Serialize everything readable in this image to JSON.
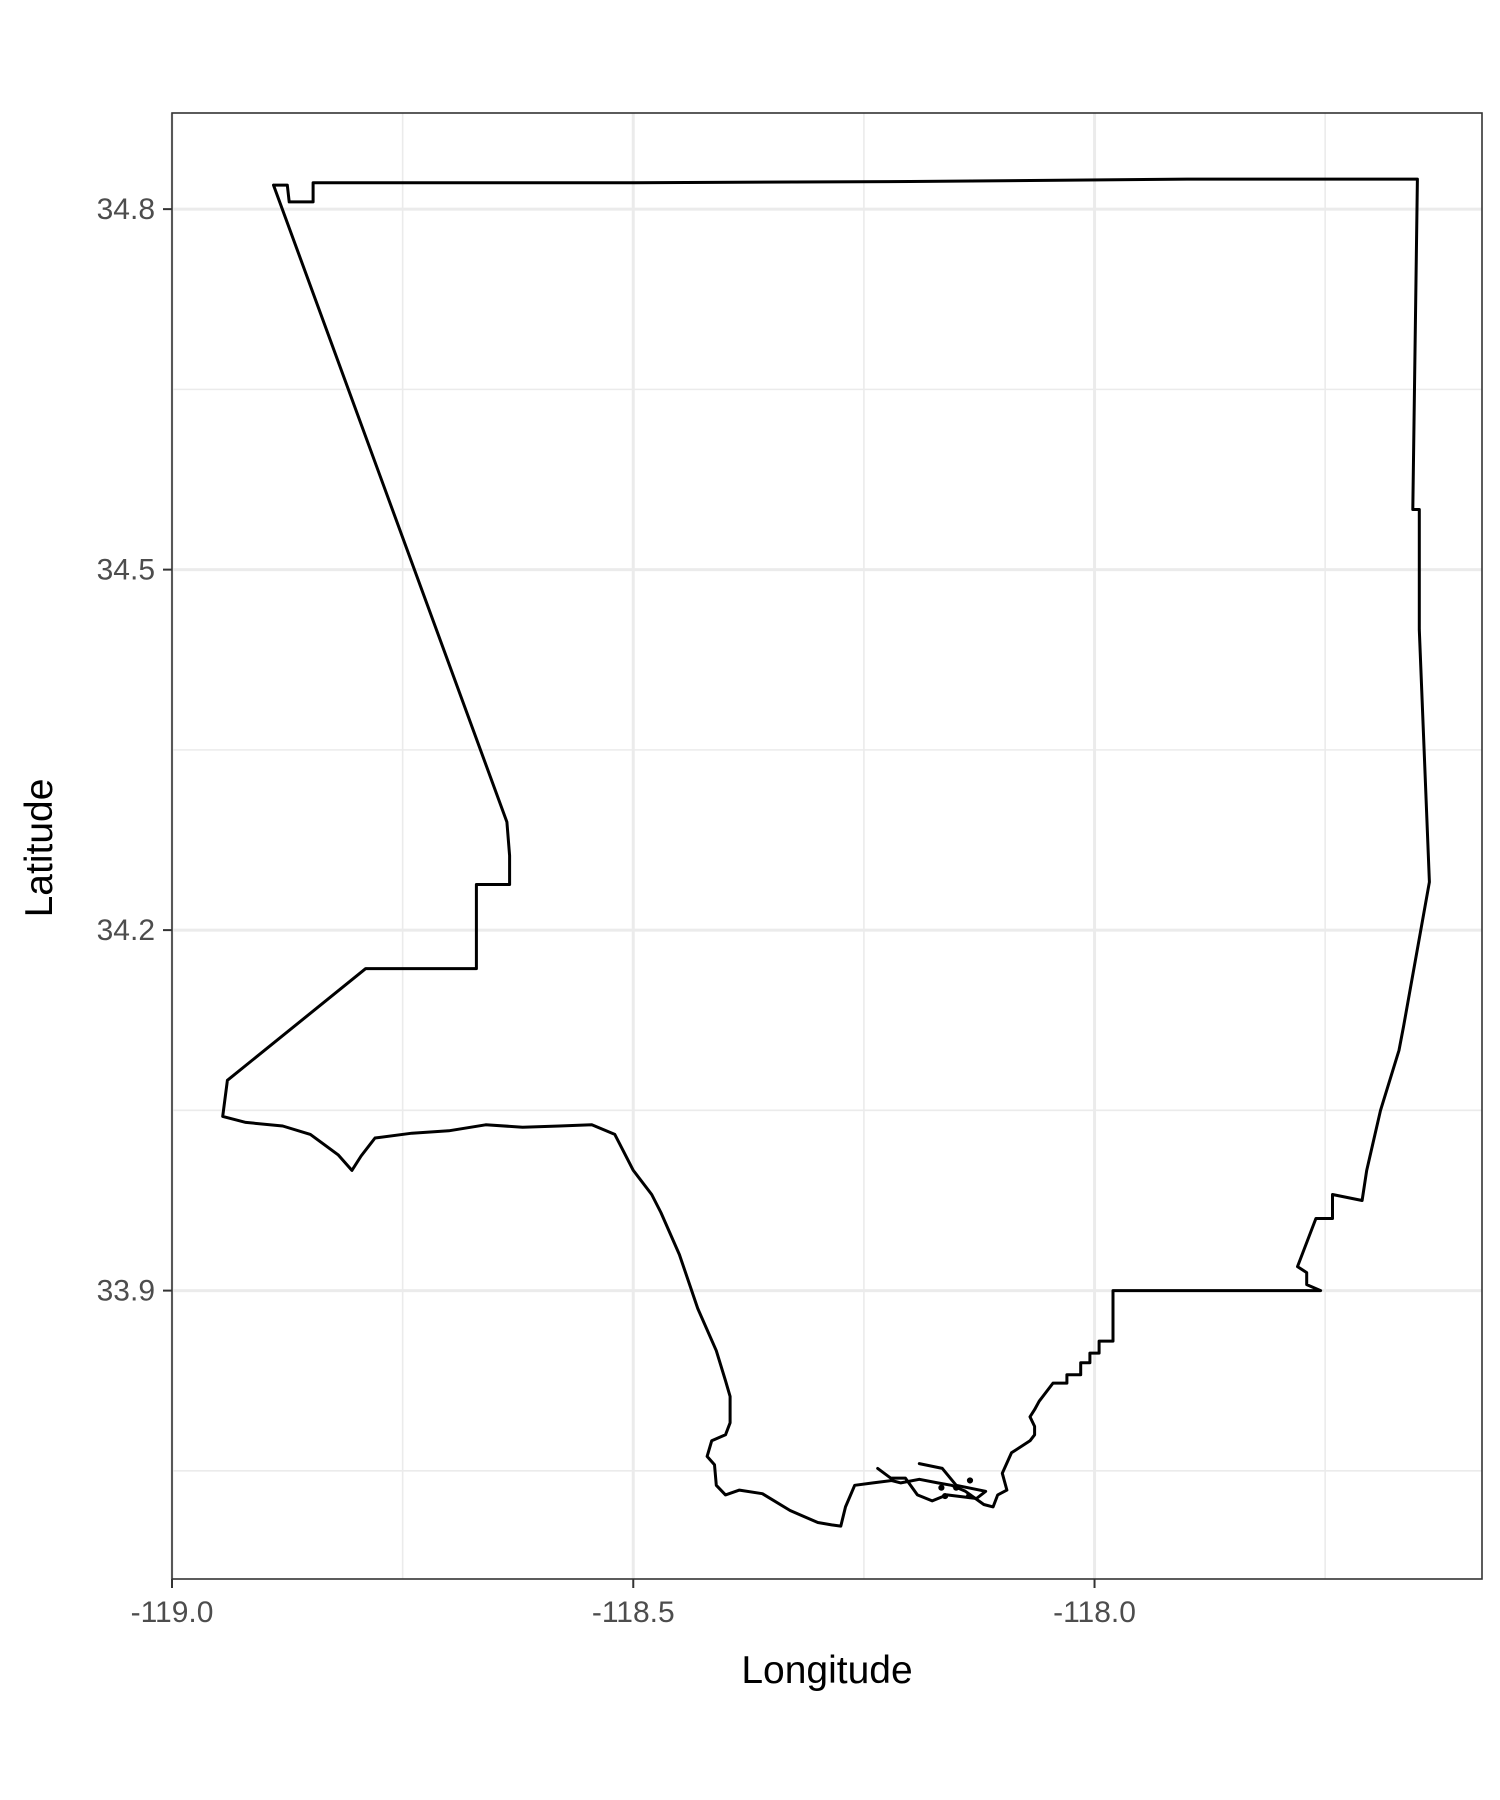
{
  "chart_data": {
    "type": "map",
    "title": "",
    "xlabel": "Longitude",
    "ylabel": "Latitude",
    "xlim": [
      -119.0,
      -117.58
    ],
    "ylim": [
      33.66,
      34.88
    ],
    "x_ticks": [
      {
        "value": -119.0,
        "label": "-119.0"
      },
      {
        "value": -118.5,
        "label": "-118.5"
      },
      {
        "value": -118.0,
        "label": "-118.0"
      }
    ],
    "y_ticks": [
      {
        "value": 33.9,
        "label": "33.9"
      },
      {
        "value": 34.2,
        "label": "34.2"
      },
      {
        "value": 34.5,
        "label": "34.5"
      },
      {
        "value": 34.8,
        "label": "34.8"
      }
    ],
    "x_minor": [
      -118.75,
      -118.25,
      -117.75
    ],
    "y_minor": [
      33.75,
      34.05,
      34.35,
      34.65
    ],
    "grid": true,
    "theme": "bw",
    "boundary": {
      "name": "county-outline",
      "coords": [
        [
          -118.89,
          34.82
        ],
        [
          -118.875,
          34.82
        ],
        [
          -118.873,
          34.806
        ],
        [
          -118.847,
          34.806
        ],
        [
          -118.847,
          34.822
        ],
        [
          -118.5,
          34.822
        ],
        [
          -118.2,
          34.823
        ],
        [
          -117.9,
          34.825
        ],
        [
          -117.65,
          34.825
        ],
        [
          -117.655,
          34.55
        ],
        [
          -117.648,
          34.55
        ],
        [
          -117.648,
          34.45
        ],
        [
          -117.637,
          34.24
        ],
        [
          -117.665,
          34.12
        ],
        [
          -117.67,
          34.1
        ],
        [
          -117.69,
          34.05
        ],
        [
          -117.705,
          34.0
        ],
        [
          -117.71,
          33.975
        ],
        [
          -117.742,
          33.98
        ],
        [
          -117.742,
          33.96
        ],
        [
          -117.76,
          33.96
        ],
        [
          -117.78,
          33.92
        ],
        [
          -117.77,
          33.915
        ],
        [
          -117.77,
          33.905
        ],
        [
          -117.755,
          33.9
        ],
        [
          -117.98,
          33.9
        ],
        [
          -117.98,
          33.858
        ],
        [
          -117.995,
          33.858
        ],
        [
          -117.995,
          33.848
        ],
        [
          -118.005,
          33.848
        ],
        [
          -118.005,
          33.84
        ],
        [
          -118.015,
          33.84
        ],
        [
          -118.015,
          33.83
        ],
        [
          -118.03,
          33.83
        ],
        [
          -118.03,
          33.823
        ],
        [
          -118.045,
          33.823
        ],
        [
          -118.06,
          33.808
        ],
        [
          -118.065,
          33.801
        ],
        [
          -118.07,
          33.795
        ],
        [
          -118.065,
          33.787
        ],
        [
          -118.065,
          33.78
        ],
        [
          -118.07,
          33.775
        ],
        [
          -118.09,
          33.765
        ],
        [
          -118.1,
          33.748
        ],
        [
          -118.095,
          33.734
        ],
        [
          -118.105,
          33.73
        ],
        [
          -118.11,
          33.72
        ],
        [
          -118.12,
          33.722
        ],
        [
          -118.14,
          33.733
        ],
        [
          -118.155,
          33.738
        ],
        [
          -118.17,
          33.74
        ],
        [
          -118.19,
          33.743
        ],
        [
          -118.21,
          33.74
        ],
        [
          -118.22,
          33.742
        ],
        [
          -118.24,
          33.74
        ],
        [
          -118.26,
          33.738
        ],
        [
          -118.27,
          33.72
        ],
        [
          -118.275,
          33.704
        ],
        [
          -118.285,
          33.705
        ],
        [
          -118.3,
          33.707
        ],
        [
          -118.315,
          33.712
        ],
        [
          -118.33,
          33.717
        ],
        [
          -118.36,
          33.731
        ],
        [
          -118.385,
          33.734
        ],
        [
          -118.4,
          33.73
        ],
        [
          -118.41,
          33.738
        ],
        [
          -118.412,
          33.755
        ],
        [
          -118.42,
          33.762
        ],
        [
          -118.415,
          33.775
        ],
        [
          -118.4,
          33.78
        ],
        [
          -118.395,
          33.79
        ],
        [
          -118.395,
          33.812
        ],
        [
          -118.4,
          33.825
        ],
        [
          -118.41,
          33.85
        ],
        [
          -118.43,
          33.885
        ],
        [
          -118.45,
          33.93
        ],
        [
          -118.47,
          33.965
        ],
        [
          -118.48,
          33.98
        ],
        [
          -118.5,
          34.0
        ],
        [
          -118.52,
          34.03
        ],
        [
          -118.545,
          34.038
        ],
        [
          -118.58,
          34.037
        ],
        [
          -118.62,
          34.036
        ],
        [
          -118.66,
          34.038
        ],
        [
          -118.7,
          34.033
        ],
        [
          -118.74,
          34.031
        ],
        [
          -118.78,
          34.027
        ],
        [
          -118.795,
          34.012
        ],
        [
          -118.805,
          34.0
        ],
        [
          -118.82,
          34.013
        ],
        [
          -118.85,
          34.03
        ],
        [
          -118.88,
          34.037
        ],
        [
          -118.92,
          34.04
        ],
        [
          -118.945,
          34.045
        ],
        [
          -118.94,
          34.075
        ],
        [
          -118.79,
          34.168
        ],
        [
          -118.67,
          34.168
        ],
        [
          -118.67,
          34.238
        ],
        [
          -118.634,
          34.238
        ],
        [
          -118.634,
          34.262
        ],
        [
          -118.637,
          34.29
        ],
        [
          -118.89,
          34.82
        ]
      ]
    },
    "islands": {
      "name": "coastal-fragments",
      "coords": [
        [
          -118.19,
          33.756
        ],
        [
          -118.165,
          33.752
        ],
        [
          -118.15,
          33.738
        ],
        [
          -118.118,
          33.733
        ],
        [
          -118.128,
          33.727
        ],
        [
          -118.16,
          33.73
        ],
        [
          -118.176,
          33.725
        ],
        [
          -118.192,
          33.73
        ],
        [
          -118.205,
          33.744
        ],
        [
          -118.221,
          33.744
        ],
        [
          -118.235,
          33.752
        ]
      ]
    },
    "dots": {
      "name": "harbor-dots",
      "coords": [
        [
          -118.166,
          33.736
        ],
        [
          -118.15,
          33.736
        ],
        [
          -118.135,
          33.742
        ],
        [
          -118.162,
          33.729
        ],
        [
          -118.136,
          33.729
        ]
      ]
    }
  }
}
